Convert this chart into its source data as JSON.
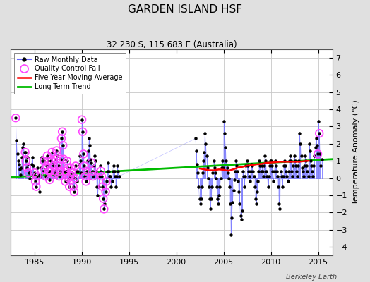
{
  "title": "GARDEN ISLAND HSF",
  "subtitle": "32.230 S, 115.683 E (Australia)",
  "ylabel": "Temperature Anomaly (°C)",
  "credit": "Berkeley Earth",
  "xlim": [
    1982.5,
    2016.5
  ],
  "ylim": [
    -4.5,
    7.5
  ],
  "yticks": [
    -4,
    -3,
    -2,
    -1,
    0,
    1,
    2,
    3,
    4,
    5,
    6,
    7
  ],
  "xticks": [
    1985,
    1990,
    1995,
    2000,
    2005,
    2010,
    2015
  ],
  "background_color": "#e0e0e0",
  "plot_bg_color": "#ffffff",
  "grid_color": "#c8c8c8",
  "raw_line_color": "#6666ff",
  "raw_dot_color": "#000000",
  "qc_color": "#ff44ff",
  "moving_avg_color": "#ff0000",
  "trend_color": "#00bb00",
  "trend_x": [
    1982.5,
    2016.5
  ],
  "trend_y": [
    0.05,
    1.1
  ],
  "moving_avg_x": [
    2002.5,
    2003.0,
    2003.5,
    2004.0,
    2004.5,
    2005.0,
    2005.5,
    2006.0,
    2006.5,
    2007.0,
    2007.5,
    2008.0,
    2008.5,
    2009.0,
    2009.5,
    2010.0,
    2010.5,
    2011.0,
    2011.5,
    2012.0,
    2012.5,
    2013.0,
    2013.5,
    2014.0
  ],
  "moving_avg_y": [
    0.55,
    0.5,
    0.45,
    0.45,
    0.5,
    0.48,
    0.42,
    0.5,
    0.6,
    0.65,
    0.72,
    0.75,
    0.8,
    0.82,
    0.88,
    0.9,
    0.92,
    0.95,
    0.95,
    0.95,
    0.95,
    0.95,
    0.98,
    1.0
  ],
  "raw_x": [
    1983.04,
    1983.12,
    1983.21,
    1983.29,
    1983.37,
    1983.46,
    1983.54,
    1983.62,
    1983.71,
    1983.79,
    1983.87,
    1983.96,
    1984.04,
    1984.12,
    1984.21,
    1984.29,
    1984.37,
    1984.46,
    1984.54,
    1984.62,
    1984.71,
    1984.79,
    1984.87,
    1984.96,
    1985.04,
    1985.12,
    1985.21,
    1985.29,
    1985.37,
    1985.46,
    1985.54,
    1985.62,
    1985.71,
    1985.79,
    1985.87,
    1985.96,
    1986.04,
    1986.12,
    1986.21,
    1986.29,
    1986.37,
    1986.46,
    1986.54,
    1986.62,
    1986.71,
    1986.79,
    1986.87,
    1986.96,
    1987.04,
    1987.12,
    1987.21,
    1987.29,
    1987.37,
    1987.46,
    1987.54,
    1987.62,
    1987.71,
    1987.79,
    1987.87,
    1987.96,
    1988.04,
    1988.12,
    1988.21,
    1988.29,
    1988.37,
    1988.46,
    1988.54,
    1988.62,
    1988.71,
    1988.79,
    1988.87,
    1988.96,
    1989.04,
    1989.12,
    1989.21,
    1989.29,
    1989.37,
    1989.46,
    1989.54,
    1989.62,
    1989.71,
    1989.79,
    1989.87,
    1989.96,
    1990.04,
    1990.12,
    1990.21,
    1990.29,
    1990.37,
    1990.46,
    1990.54,
    1990.62,
    1990.71,
    1990.79,
    1990.87,
    1990.96,
    1991.04,
    1991.12,
    1991.21,
    1991.29,
    1991.37,
    1991.46,
    1991.54,
    1991.62,
    1991.71,
    1991.79,
    1991.87,
    1991.96,
    1992.04,
    1992.12,
    1992.21,
    1992.29,
    1992.37,
    1992.46,
    1992.54,
    1992.62,
    1992.71,
    1992.79,
    1992.87,
    1992.96,
    1993.04,
    1993.12,
    1993.21,
    1993.29,
    1993.37,
    1993.46,
    1993.54,
    1993.62,
    1993.71,
    1993.79,
    1993.87,
    1993.96,
    2002.04,
    2002.12,
    2002.21,
    2002.29,
    2002.37,
    2002.46,
    2002.54,
    2002.62,
    2002.71,
    2002.79,
    2002.87,
    2002.96,
    2003.04,
    2003.12,
    2003.21,
    2003.29,
    2003.37,
    2003.46,
    2003.54,
    2003.62,
    2003.71,
    2003.79,
    2003.87,
    2003.96,
    2004.04,
    2004.12,
    2004.21,
    2004.29,
    2004.37,
    2004.46,
    2004.54,
    2004.62,
    2004.71,
    2004.79,
    2004.87,
    2004.96,
    2005.04,
    2005.12,
    2005.21,
    2005.29,
    2005.37,
    2005.46,
    2005.54,
    2005.62,
    2005.71,
    2005.79,
    2005.87,
    2005.96,
    2006.04,
    2006.12,
    2006.21,
    2006.29,
    2006.37,
    2006.46,
    2006.54,
    2006.62,
    2006.71,
    2006.79,
    2006.87,
    2006.96,
    2007.04,
    2007.12,
    2007.21,
    2007.29,
    2007.37,
    2007.46,
    2007.54,
    2007.62,
    2007.71,
    2007.79,
    2007.87,
    2007.96,
    2008.04,
    2008.12,
    2008.21,
    2008.29,
    2008.37,
    2008.46,
    2008.54,
    2008.62,
    2008.71,
    2008.79,
    2008.87,
    2008.96,
    2009.04,
    2009.12,
    2009.21,
    2009.29,
    2009.37,
    2009.46,
    2009.54,
    2009.62,
    2009.71,
    2009.79,
    2009.87,
    2009.96,
    2010.04,
    2010.12,
    2010.21,
    2010.29,
    2010.37,
    2010.46,
    2010.54,
    2010.62,
    2010.71,
    2010.79,
    2010.87,
    2010.96,
    2011.04,
    2011.12,
    2011.21,
    2011.29,
    2011.37,
    2011.46,
    2011.54,
    2011.62,
    2011.71,
    2011.79,
    2011.87,
    2011.96,
    2012.04,
    2012.12,
    2012.21,
    2012.29,
    2012.37,
    2012.46,
    2012.54,
    2012.62,
    2012.71,
    2012.79,
    2012.87,
    2012.96,
    2013.04,
    2013.12,
    2013.21,
    2013.29,
    2013.37,
    2013.46,
    2013.54,
    2013.62,
    2013.71,
    2013.79,
    2013.87,
    2013.96,
    2014.04,
    2014.12,
    2014.21,
    2014.29,
    2014.37,
    2014.46,
    2014.54,
    2014.62,
    2014.71,
    2014.79,
    2014.87,
    2014.96,
    2015.04,
    2015.12,
    2015.21,
    2015.29,
    2015.37
  ],
  "raw_y": [
    3.5,
    2.2,
    1.4,
    1.0,
    0.8,
    0.5,
    0.2,
    0.6,
    1.2,
    1.8,
    2.0,
    1.5,
    1.5,
    1.0,
    0.6,
    1.2,
    0.8,
    0.3,
    0.0,
    0.4,
    0.8,
    1.2,
    0.7,
    0.2,
    0.3,
    -0.2,
    -0.5,
    0.1,
    0.6,
    0.2,
    -0.8,
    0.1,
    0.6,
    1.2,
    1.0,
    0.4,
    1.0,
    0.5,
    0.1,
    0.7,
    1.3,
    1.0,
    0.4,
    -0.1,
    0.4,
    1.0,
    1.5,
    0.8,
    0.7,
    0.2,
    0.4,
    1.1,
    1.6,
    1.3,
    0.7,
    0.1,
    0.4,
    1.1,
    2.3,
    2.7,
    1.9,
    1.1,
    0.4,
    -0.2,
    0.4,
    1.0,
    0.6,
    0.0,
    -0.5,
    0.1,
    0.6,
    0.3,
    0.1,
    -0.5,
    -0.8,
    0.0,
    0.7,
    0.4,
    -0.2,
    0.4,
    0.8,
    1.3,
    1.0,
    0.3,
    3.4,
    2.7,
    1.4,
    0.7,
    0.1,
    -0.2,
    0.4,
    1.0,
    1.6,
    2.3,
    1.9,
    1.1,
    0.9,
    0.4,
    0.1,
    0.7,
    1.3,
    1.0,
    0.4,
    -0.5,
    -1.0,
    -0.5,
    0.1,
    0.7,
    0.4,
    0.1,
    -0.5,
    -1.2,
    -1.8,
    -1.5,
    -0.8,
    -0.2,
    0.4,
    0.9,
    0.4,
    0.1,
    0.1,
    -0.5,
    -0.2,
    0.4,
    0.7,
    0.4,
    0.1,
    -0.5,
    0.1,
    0.7,
    0.4,
    0.1,
    2.3,
    1.6,
    0.8,
    0.3,
    -0.5,
    -1.2,
    -1.5,
    -1.2,
    -0.5,
    0.3,
    1.0,
    1.5,
    2.6,
    2.0,
    1.3,
    0.6,
    0.0,
    -0.5,
    -1.2,
    -1.8,
    -1.2,
    -0.5,
    0.3,
    1.0,
    0.6,
    0.3,
    0.0,
    -0.5,
    -1.2,
    -1.5,
    -1.0,
    -0.5,
    0.0,
    0.6,
    1.0,
    0.6,
    3.3,
    2.6,
    1.8,
    1.0,
    0.6,
    0.3,
    0.0,
    -0.5,
    -1.5,
    -3.3,
    -2.3,
    -1.4,
    -0.7,
    -0.1,
    0.4,
    1.0,
    0.7,
    0.4,
    -0.2,
    -0.8,
    -1.5,
    -2.2,
    -2.4,
    -1.9,
    0.4,
    0.1,
    -0.5,
    0.1,
    0.7,
    1.0,
    0.7,
    0.4,
    0.1,
    -0.2,
    0.4,
    0.8,
    0.7,
    0.4,
    0.1,
    -0.5,
    -1.2,
    -1.5,
    -0.8,
    -0.2,
    0.4,
    1.0,
    0.7,
    0.4,
    0.7,
    0.4,
    0.1,
    0.7,
    1.3,
    1.0,
    0.4,
    0.1,
    -0.5,
    0.1,
    0.7,
    1.0,
    1.0,
    0.7,
    0.4,
    -0.2,
    0.4,
    1.0,
    0.7,
    0.4,
    0.1,
    -0.5,
    -1.5,
    -1.8,
    0.4,
    0.1,
    -0.5,
    0.1,
    0.7,
    1.0,
    0.7,
    0.4,
    0.1,
    -0.2,
    0.4,
    1.0,
    1.3,
    1.0,
    0.4,
    0.1,
    0.7,
    1.3,
    1.0,
    0.7,
    0.4,
    0.1,
    0.7,
    1.0,
    2.6,
    2.0,
    1.3,
    0.6,
    0.4,
    0.1,
    0.7,
    1.3,
    1.0,
    0.7,
    0.4,
    0.1,
    2.0,
    1.6,
    1.0,
    0.7,
    0.4,
    0.1,
    0.7,
    1.3,
    1.8,
    2.3,
    1.9,
    1.4,
    3.3,
    2.6,
    1.4,
    0.7,
    1.1
  ],
  "qc_x": [
    1983.04,
    1984.04,
    1984.12,
    1984.21,
    1984.37,
    1985.04,
    1985.12,
    1985.21,
    1985.29,
    1986.04,
    1986.12,
    1986.21,
    1986.29,
    1986.37,
    1986.46,
    1986.54,
    1986.62,
    1986.71,
    1986.79,
    1986.87,
    1987.04,
    1987.12,
    1987.21,
    1987.29,
    1987.37,
    1987.46,
    1987.54,
    1987.62,
    1987.71,
    1987.79,
    1987.87,
    1987.96,
    1988.04,
    1988.12,
    1988.21,
    1988.29,
    1988.37,
    1988.46,
    1988.54,
    1988.62,
    1988.71,
    1988.79,
    1988.87,
    1988.96,
    1989.04,
    1989.12,
    1989.21,
    1989.29,
    1989.37,
    1990.04,
    1990.12,
    1990.21,
    1990.29,
    1990.37,
    1990.46,
    1990.54,
    1991.04,
    1991.12,
    1991.21,
    1992.04,
    1992.12,
    1992.21,
    1992.29,
    1992.37,
    1992.54,
    1992.62,
    2014.96,
    2015.12
  ],
  "qc_y": [
    3.5,
    1.5,
    1.0,
    0.6,
    0.3,
    0.3,
    -0.2,
    -0.5,
    0.1,
    1.0,
    0.5,
    0.1,
    0.7,
    1.3,
    1.0,
    0.4,
    -0.1,
    0.4,
    1.0,
    1.5,
    0.7,
    0.2,
    0.4,
    1.1,
    1.6,
    1.3,
    0.7,
    0.1,
    0.4,
    1.1,
    2.3,
    2.7,
    1.9,
    1.1,
    0.4,
    -0.2,
    0.4,
    1.0,
    0.6,
    0.0,
    -0.5,
    0.1,
    0.6,
    0.3,
    0.1,
    -0.5,
    -0.8,
    0.0,
    0.7,
    3.4,
    2.7,
    1.4,
    0.7,
    0.1,
    -0.2,
    0.4,
    0.9,
    0.4,
    0.1,
    0.4,
    0.1,
    -0.5,
    -1.2,
    -1.8,
    -0.8,
    -0.2,
    1.4,
    2.6
  ]
}
